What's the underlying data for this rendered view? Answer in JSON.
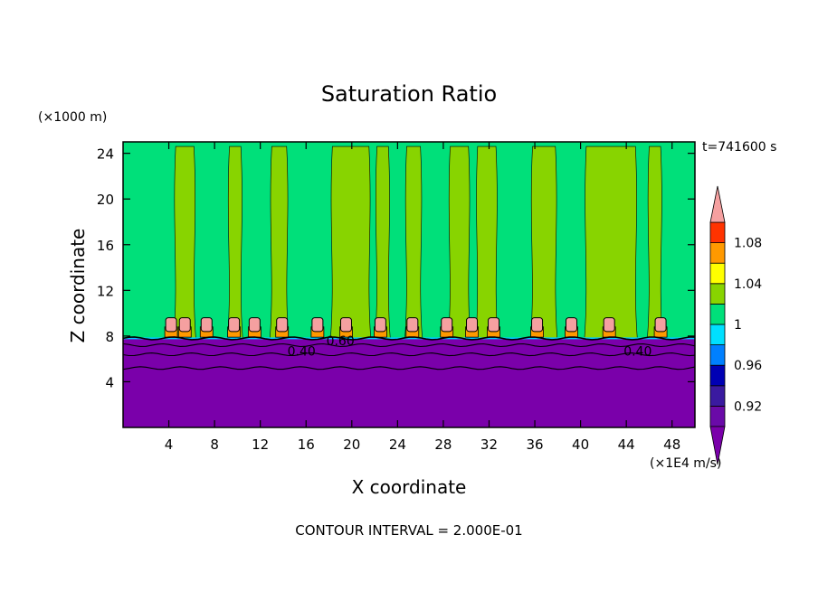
{
  "chart_data": {
    "type": "heatmap",
    "title": "Saturation Ratio",
    "xlabel": "X coordinate",
    "ylabel": "Z coordinate",
    "x_unit": "(×1E4 m/s)",
    "y_unit": "(×1000 m)",
    "time_label": "t=741600 s",
    "footer": "CONTOUR INTERVAL = 2.000E-01",
    "xlim": [
      0,
      50
    ],
    "ylim": [
      0,
      25
    ],
    "x_ticks": [
      4,
      8,
      12,
      16,
      20,
      24,
      28,
      32,
      36,
      40,
      44,
      48
    ],
    "x_tick_labels": [
      "4",
      "8",
      "12",
      "16",
      "20",
      "24",
      "28",
      "32",
      "36",
      "40",
      "44",
      "48"
    ],
    "y_ticks": [
      4,
      8,
      12,
      16,
      20,
      24
    ],
    "y_tick_labels": [
      "4",
      "8",
      "12",
      "16",
      "20",
      "24"
    ],
    "colorbar": {
      "levels": [
        0.9,
        0.92,
        0.94,
        0.96,
        0.98,
        1.0,
        1.02,
        1.04,
        1.06,
        1.08,
        1.1
      ],
      "labeled_levels": [
        0.92,
        0.96,
        1.0,
        1.04,
        1.08
      ],
      "labels": [
        "0.92",
        "0.96",
        "1",
        "1.04",
        "1.08"
      ],
      "colors": [
        "#6a0aa8",
        "#3a1aa0",
        "#0000b4",
        "#0080ff",
        "#00e0ff",
        "#00e07a",
        "#88d400",
        "#ffff00",
        "#ff9900",
        "#ff3300",
        "#f5a0a0"
      ],
      "under_color": "#7a00aa",
      "over_color": "#f5a0a0"
    },
    "regions": {
      "lower_layer": {
        "z_top": 7.8,
        "color": "#7a00aa",
        "value": "<0.90"
      },
      "upper_field": {
        "z_bottom": 7.8,
        "z_top": 25,
        "colors": [
          "#00e07a",
          "#88d400"
        ]
      }
    },
    "green_bands": [
      [
        4.6,
        6.2
      ],
      [
        9.3,
        10.3
      ],
      [
        13.0,
        14.3
      ],
      [
        18.3,
        21.5
      ],
      [
        22.2,
        23.2
      ],
      [
        24.8,
        26.0
      ],
      [
        28.6,
        30.2
      ],
      [
        31.0,
        32.6
      ],
      [
        35.8,
        37.8
      ],
      [
        40.5,
        44.8
      ],
      [
        46.0,
        47.0
      ]
    ],
    "pink_blobs": [
      4.2,
      5.4,
      7.3,
      9.7,
      11.5,
      13.9,
      17.0,
      19.5,
      22.5,
      25.3,
      28.3,
      30.5,
      32.4,
      36.2,
      39.2,
      42.5,
      47.0
    ],
    "contour_lines_z": [
      7.8,
      7.2,
      6.4,
      5.2
    ],
    "contour_labels": [
      {
        "text": "0.40",
        "x": 15.6,
        "z": 6.7
      },
      {
        "text": "0.60",
        "x": 19.0,
        "z": 7.6
      },
      {
        "text": "0.40",
        "x": 45.0,
        "z": 6.7
      }
    ]
  }
}
